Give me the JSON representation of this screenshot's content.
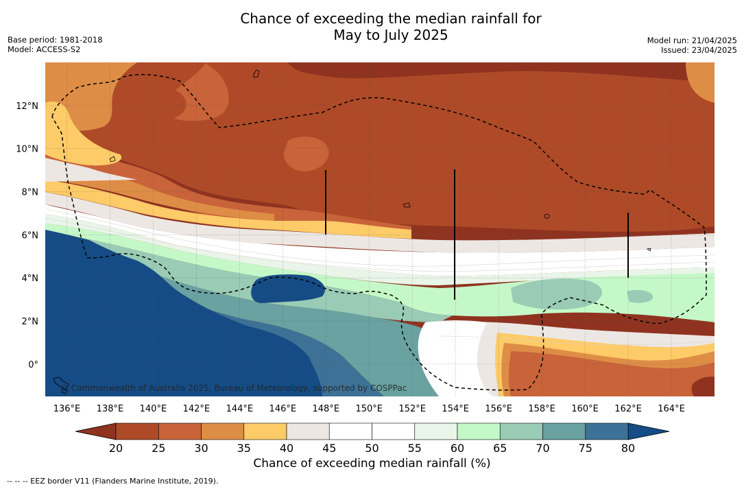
{
  "title": {
    "line1": "Chance of exceeding the median rainfall for",
    "line2": "May to July 2025"
  },
  "meta_left": {
    "base_period": "Base period: 1981-2018",
    "model": "Model: ACCESS-S2"
  },
  "meta_right": {
    "model_run": "Model run: 21/04/2025",
    "issued": "Issued: 23/04/2025"
  },
  "map": {
    "lon_range": [
      135,
      166
    ],
    "lat_range": [
      -1.5,
      14
    ],
    "lon_ticks": [
      {
        "value": 136,
        "label": "136°E"
      },
      {
        "value": 138,
        "label": "138°E"
      },
      {
        "value": 140,
        "label": "140°E"
      },
      {
        "value": 142,
        "label": "142°E"
      },
      {
        "value": 144,
        "label": "144°E"
      },
      {
        "value": 146,
        "label": "146°E"
      },
      {
        "value": 148,
        "label": "148°E"
      },
      {
        "value": 150,
        "label": "150°E"
      },
      {
        "value": 152,
        "label": "152°E"
      },
      {
        "value": 154,
        "label": "154°E"
      },
      {
        "value": 156,
        "label": "156°E"
      },
      {
        "value": 158,
        "label": "158°E"
      },
      {
        "value": 160,
        "label": "160°E"
      },
      {
        "value": 162,
        "label": "162°E"
      },
      {
        "value": 164,
        "label": "164°E"
      }
    ],
    "lat_ticks": [
      {
        "value": 0,
        "label": "0°"
      },
      {
        "value": 2,
        "label": "2°N"
      },
      {
        "value": 4,
        "label": "4°N"
      },
      {
        "value": 6,
        "label": "6°N"
      },
      {
        "value": 8,
        "label": "8°N"
      },
      {
        "value": 10,
        "label": "10°N"
      },
      {
        "value": 12,
        "label": "12°N"
      }
    ],
    "grid": true,
    "copyright": "© Commonwealth of Australia 2025, Bureau of Meteorology, supported by COSPPac"
  },
  "colorbar": {
    "ticks": [
      "20",
      "25",
      "30",
      "35",
      "40",
      "45",
      "50",
      "55",
      "60",
      "65",
      "70",
      "75",
      "80"
    ],
    "under_color": "#8f3320",
    "over_color": "#154c85",
    "bin_colors": [
      "#ae4a27",
      "#c8633a",
      "#de8d46",
      "#fdcb67",
      "#ece7e3",
      "#ffffff",
      "#ffffff",
      "#e9f5e8",
      "#c5f8c8",
      "#99cbb5",
      "#6aa1a1",
      "#3e7196"
    ],
    "title": "Chance of exceeding median rainfall (%)"
  },
  "footnote": "-- -- -- EEZ border V11 (Flanders Marine Institute, 2019)."
}
